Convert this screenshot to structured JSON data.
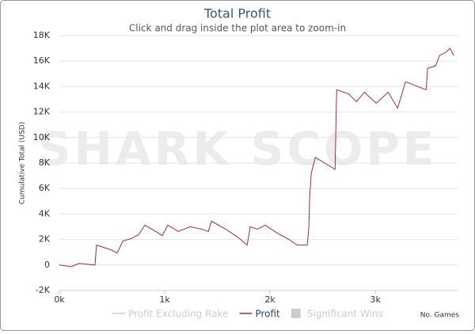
{
  "chart_data": {
    "type": "line",
    "title": "Total Profit",
    "subtitle": "Click and drag inside the plot area to zoom-in",
    "watermark": "SHARK SCOPE",
    "y_label": "Cumulative Total (USD)",
    "x_label": "No. Games",
    "xlim": [
      0,
      3780
    ],
    "xticks": [
      {
        "value": 0,
        "label": "0k"
      },
      {
        "value": 1000,
        "label": "1k"
      },
      {
        "value": 2000,
        "label": "2k"
      },
      {
        "value": 3000,
        "label": "3k"
      }
    ],
    "ylim": [
      -2000,
      18000
    ],
    "yticks": [
      {
        "value": -2000,
        "label": "-2K"
      },
      {
        "value": 0,
        "label": "0"
      },
      {
        "value": 2000,
        "label": "2K"
      },
      {
        "value": 4000,
        "label": "4K"
      },
      {
        "value": 6000,
        "label": "6K"
      },
      {
        "value": 8000,
        "label": "8K"
      },
      {
        "value": 10000,
        "label": "10K"
      },
      {
        "value": 12000,
        "label": "12K"
      },
      {
        "value": 14000,
        "label": "14K"
      },
      {
        "value": 16000,
        "label": "16K"
      },
      {
        "value": 18000,
        "label": "18K"
      }
    ],
    "grid": true,
    "series": [
      {
        "name": "Profit Excluding Rake",
        "color": "#cccccc",
        "visible": false,
        "marker": "line"
      },
      {
        "name": "Profit",
        "color": "#a03030",
        "visible": true,
        "marker": "line",
        "x": [
          0,
          113,
          188,
          263,
          338,
          353,
          489,
          549,
          602,
          677,
          752,
          812,
          902,
          977,
          1030,
          1128,
          1241,
          1353,
          1414,
          1444,
          1579,
          1692,
          1782,
          1812,
          1880,
          1955,
          2068,
          2180,
          2256,
          2353,
          2368,
          2376,
          2391,
          2429,
          2519,
          2617,
          2632,
          2744,
          2820,
          2895,
          3008,
          3120,
          3211,
          3286,
          3383,
          3481,
          3496,
          3571,
          3609,
          3669,
          3707,
          3744
        ],
        "values": [
          0,
          -125,
          125,
          60,
          0,
          1560,
          1190,
          940,
          1880,
          2060,
          2380,
          3130,
          2690,
          2310,
          3130,
          2630,
          3000,
          2810,
          2630,
          3440,
          2810,
          2190,
          1560,
          3000,
          2810,
          3130,
          2500,
          2000,
          1560,
          1560,
          2940,
          5310,
          7190,
          8440,
          8000,
          7500,
          13750,
          13440,
          12810,
          13560,
          12690,
          13560,
          12310,
          14380,
          14060,
          13750,
          15440,
          15630,
          16440,
          16690,
          17000,
          16440
        ]
      },
      {
        "name": "Significant Wins",
        "color": "#cccccc",
        "visible": false,
        "marker": "box"
      }
    ]
  }
}
